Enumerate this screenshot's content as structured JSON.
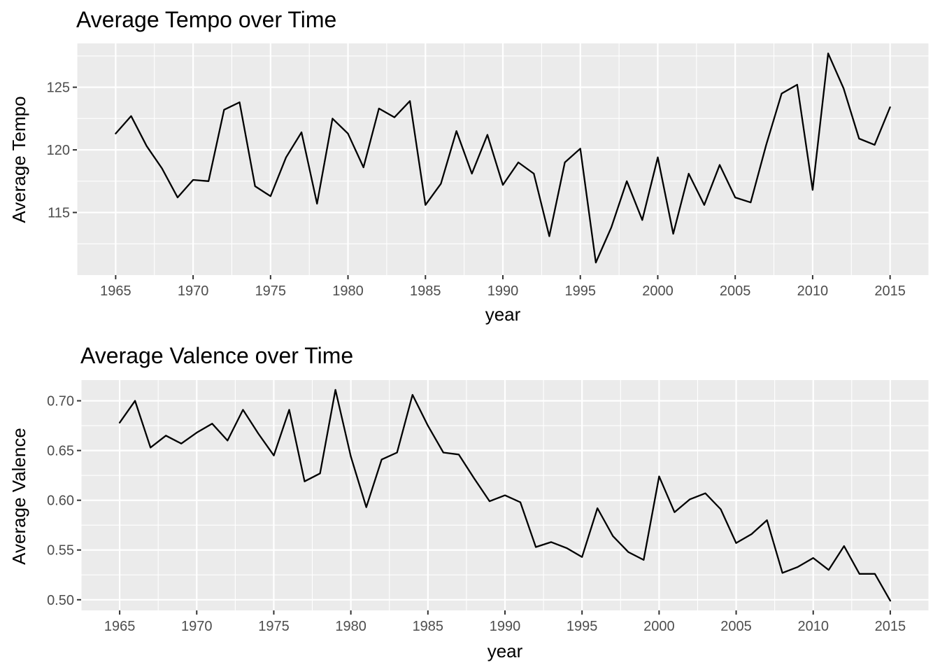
{
  "chart_data": [
    {
      "type": "line",
      "title": "Average Tempo over Time",
      "xlabel": "year",
      "ylabel": "Average Tempo",
      "xlim": [
        1962.5,
        2017.5
      ],
      "ylim": [
        110.0,
        128.5
      ],
      "x_ticks": [
        1965,
        1970,
        1975,
        1980,
        1985,
        1990,
        1995,
        2000,
        2005,
        2010,
        2015
      ],
      "x_tick_labels": [
        "1965",
        "1970",
        "1975",
        "1980",
        "1985",
        "1990",
        "1995",
        "2000",
        "2005",
        "2010",
        "2015"
      ],
      "y_ticks": [
        115,
        120,
        125
      ],
      "y_tick_labels": [
        "115",
        "120",
        "125"
      ],
      "grid": true,
      "series": [
        {
          "color": "#000000",
          "x": [
            1965,
            1966,
            1967,
            1968,
            1969,
            1970,
            1971,
            1972,
            1973,
            1974,
            1975,
            1976,
            1977,
            1978,
            1979,
            1980,
            1981,
            1982,
            1983,
            1984,
            1985,
            1986,
            1987,
            1988,
            1989,
            1990,
            1991,
            1992,
            1993,
            1994,
            1995,
            1996,
            1997,
            1998,
            1999,
            2000,
            2001,
            2002,
            2003,
            2004,
            2005,
            2006,
            2007,
            2008,
            2009,
            2010,
            2011,
            2012,
            2013,
            2014,
            2015
          ],
          "values": [
            121.3,
            122.7,
            120.3,
            118.5,
            116.2,
            117.6,
            117.5,
            123.2,
            123.8,
            117.1,
            116.3,
            119.4,
            121.4,
            115.7,
            122.5,
            121.3,
            118.6,
            123.3,
            122.6,
            123.9,
            115.6,
            117.3,
            121.5,
            118.1,
            121.2,
            117.2,
            119.0,
            118.1,
            113.1,
            119.0,
            120.1,
            111.0,
            113.8,
            117.5,
            114.4,
            119.4,
            113.3,
            118.1,
            115.6,
            118.8,
            116.2,
            115.8,
            120.4,
            124.5,
            125.2,
            116.8,
            127.7,
            124.9,
            120.9,
            120.4,
            123.4
          ]
        }
      ]
    },
    {
      "type": "line",
      "title": "Average Valence over Time",
      "xlabel": "year",
      "ylabel": "Average Valence",
      "xlim": [
        1962.5,
        2017.5
      ],
      "ylim": [
        0.4893,
        0.7208
      ],
      "x_ticks": [
        1965,
        1970,
        1975,
        1980,
        1985,
        1990,
        1995,
        2000,
        2005,
        2010,
        2015
      ],
      "x_tick_labels": [
        "1965",
        "1970",
        "1975",
        "1980",
        "1985",
        "1990",
        "1995",
        "2000",
        "2005",
        "2010",
        "2015"
      ],
      "y_ticks": [
        0.5,
        0.55,
        0.6,
        0.65,
        0.7
      ],
      "y_tick_labels": [
        "0.50",
        "0.55",
        "0.60",
        "0.65",
        "0.70"
      ],
      "grid": true,
      "series": [
        {
          "color": "#000000",
          "x": [
            1965,
            1966,
            1967,
            1968,
            1969,
            1970,
            1971,
            1972,
            1973,
            1974,
            1975,
            1976,
            1977,
            1978,
            1979,
            1980,
            1981,
            1982,
            1983,
            1984,
            1985,
            1986,
            1987,
            1988,
            1989,
            1990,
            1991,
            1992,
            1993,
            1994,
            1995,
            1996,
            1997,
            1998,
            1999,
            2000,
            2001,
            2002,
            2003,
            2004,
            2005,
            2006,
            2007,
            2008,
            2009,
            2010,
            2011,
            2012,
            2013,
            2014,
            2015
          ],
          "values": [
            0.678,
            0.7,
            0.653,
            0.665,
            0.657,
            0.668,
            0.677,
            0.66,
            0.691,
            0.667,
            0.645,
            0.691,
            0.619,
            0.627,
            0.711,
            0.644,
            0.593,
            0.641,
            0.648,
            0.706,
            0.675,
            0.648,
            0.646,
            0.622,
            0.599,
            0.605,
            0.598,
            0.553,
            0.558,
            0.552,
            0.543,
            0.592,
            0.564,
            0.548,
            0.54,
            0.624,
            0.588,
            0.601,
            0.607,
            0.591,
            0.557,
            0.566,
            0.58,
            0.527,
            0.533,
            0.542,
            0.53,
            0.554,
            0.526,
            0.526,
            0.499
          ]
        }
      ]
    }
  ]
}
